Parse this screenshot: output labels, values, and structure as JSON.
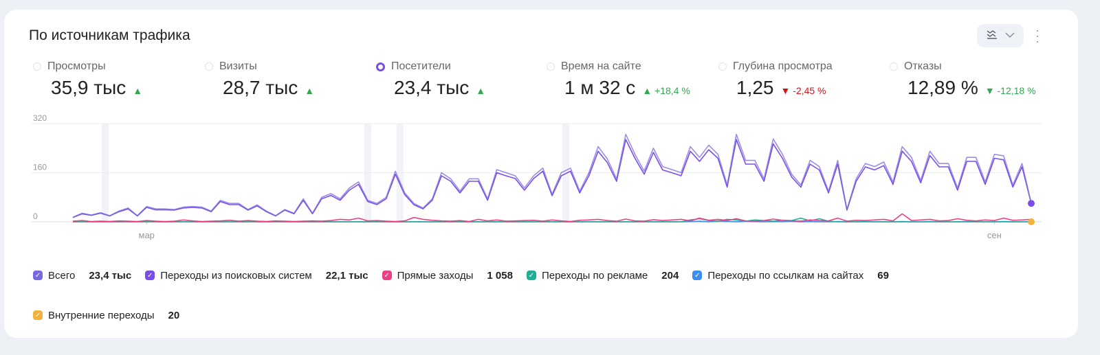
{
  "widget": {
    "title": "По источникам трафика",
    "more_icon": "kebab-icon",
    "chart_type_icon": "line-chart-icon"
  },
  "metrics": [
    {
      "label": "Просмотры",
      "value": "35,9 тыс",
      "trend": "up",
      "delta": "",
      "selected": false
    },
    {
      "label": "Визиты",
      "value": "28,7 тыс",
      "trend": "up",
      "delta": "",
      "selected": false
    },
    {
      "label": "Посетители",
      "value": "23,4 тыс",
      "trend": "up",
      "delta": "",
      "selected": true
    },
    {
      "label": "Время на сайте",
      "value": "1 м 32 с",
      "trend": "up",
      "delta": "+18,4 %",
      "selected": false
    },
    {
      "label": "Глубина просмотра",
      "value": "1,25",
      "trend": "down",
      "delta": "-2,45 %",
      "selected": false
    },
    {
      "label": "Отказы",
      "value": "12,89 %",
      "trend": "down-good",
      "delta": "-12,18 %",
      "selected": false
    }
  ],
  "colors": {
    "accent": "#7b4de8",
    "up": "#2fa84f",
    "down": "#d0141a"
  },
  "chart_data": {
    "type": "line",
    "ylim": [
      0,
      320
    ],
    "y_ticks": [
      "0",
      "160",
      "320"
    ],
    "x_ticks": [
      {
        "label": "мар",
        "index": 8
      },
      {
        "label": "сен",
        "index": 100
      }
    ],
    "highlight_indices": [
      3.5,
      32,
      35.5,
      53.5
    ],
    "grid": true,
    "legend_placement": "bottom",
    "series": [
      {
        "name": "Всего",
        "total": "23,4 тыс",
        "color": "#7768e0",
        "values": [
          15,
          28,
          22,
          30,
          20,
          35,
          45,
          20,
          50,
          42,
          42,
          40,
          48,
          50,
          48,
          35,
          70,
          60,
          60,
          40,
          55,
          35,
          20,
          40,
          28,
          75,
          28,
          80,
          92,
          75,
          110,
          130,
          70,
          60,
          80,
          165,
          95,
          60,
          45,
          75,
          160,
          140,
          100,
          140,
          140,
          75,
          170,
          160,
          150,
          110,
          150,
          175,
          90,
          160,
          175,
          100,
          160,
          245,
          205,
          140,
          285,
          220,
          165,
          240,
          180,
          170,
          160,
          245,
          210,
          250,
          220,
          120,
          285,
          200,
          200,
          140,
          270,
          220,
          155,
          120,
          200,
          180,
          100,
          200,
          40,
          140,
          190,
          180,
          195,
          130,
          245,
          210,
          135,
          230,
          190,
          190,
          110,
          210,
          210,
          130,
          220,
          215,
          120,
          190,
          60
        ]
      },
      {
        "name": "Переходы из поисковых систем",
        "total": "22,1 тыс",
        "color": "#7b4de8",
        "values": [
          14,
          26,
          21,
          28,
          19,
          33,
          42,
          19,
          47,
          39,
          39,
          38,
          45,
          47,
          45,
          33,
          66,
          56,
          56,
          38,
          52,
          33,
          19,
          38,
          26,
          70,
          26,
          75,
          86,
          70,
          103,
          122,
          66,
          56,
          75,
          155,
          89,
          56,
          42,
          70,
          150,
          132,
          94,
          132,
          132,
          70,
          160,
          150,
          141,
          103,
          141,
          165,
          85,
          150,
          165,
          94,
          150,
          230,
          193,
          132,
          268,
          207,
          155,
          226,
          169,
          160,
          150,
          230,
          197,
          235,
          207,
          113,
          268,
          188,
          188,
          132,
          254,
          207,
          146,
          113,
          188,
          169,
          94,
          188,
          38,
          132,
          179,
          169,
          183,
          122,
          230,
          197,
          127,
          216,
          179,
          179,
          103,
          197,
          197,
          122,
          207,
          202,
          113,
          179,
          60
        ]
      },
      {
        "name": "Прямые заходы",
        "total": "1 058",
        "color": "#ec3f86",
        "values": [
          2,
          4,
          1,
          2,
          1,
          3,
          2,
          1,
          4,
          2,
          1,
          2,
          6,
          3,
          1,
          2,
          3,
          5,
          2,
          4,
          2,
          1,
          3,
          2,
          1,
          2,
          3,
          2,
          4,
          8,
          6,
          12,
          3,
          4,
          2,
          1,
          3,
          14,
          8,
          5,
          3,
          2,
          4,
          1,
          8,
          3,
          6,
          2,
          3,
          4,
          5,
          2,
          6,
          3,
          1,
          5,
          6,
          8,
          4,
          2,
          9,
          3,
          2,
          7,
          4,
          6,
          8,
          3,
          12,
          5,
          8,
          4,
          10,
          3,
          2,
          4,
          9,
          5,
          3,
          2,
          6,
          4,
          3,
          12,
          2,
          5,
          4,
          6,
          8,
          3,
          26,
          4,
          6,
          8,
          3,
          4,
          10,
          5,
          3,
          6,
          4,
          12,
          5,
          6,
          8
        ]
      },
      {
        "name": "Переходы по рекламе",
        "total": "204",
        "color": "#1fae98",
        "values": [
          0,
          0,
          0,
          0,
          0,
          0,
          0,
          0,
          0,
          0,
          0,
          0,
          0,
          0,
          0,
          0,
          0,
          0,
          0,
          0,
          0,
          0,
          0,
          0,
          0,
          0,
          0,
          0,
          0,
          0,
          0,
          0,
          0,
          0,
          0,
          0,
          0,
          0,
          0,
          0,
          0,
          0,
          0,
          0,
          0,
          0,
          0,
          0,
          0,
          0,
          0,
          0,
          0,
          0,
          0,
          0,
          0,
          0,
          0,
          0,
          0,
          0,
          0,
          0,
          0,
          0,
          0,
          6,
          10,
          4,
          2,
          8,
          6,
          2,
          6,
          4,
          2,
          5,
          4,
          12,
          3,
          10,
          2,
          0,
          0,
          0,
          0,
          0,
          0,
          0,
          0,
          0,
          0,
          0,
          0,
          0,
          0,
          0,
          0,
          0,
          0,
          0,
          0,
          0,
          0
        ]
      },
      {
        "name": "Переходы по ссылкам на сайтах",
        "total": "69",
        "color": "#3b8ef0",
        "values": [
          0,
          0,
          0,
          0,
          0,
          0,
          0,
          0,
          0,
          0,
          0,
          0,
          0,
          0,
          0,
          0,
          0,
          0,
          0,
          0,
          0,
          0,
          0,
          0,
          0,
          0,
          0,
          0,
          0,
          0,
          0,
          0,
          0,
          0,
          0,
          0,
          0,
          0,
          0,
          0,
          0,
          0,
          0,
          0,
          0,
          0,
          0,
          0,
          0,
          0,
          0,
          0,
          0,
          0,
          0,
          0,
          0,
          0,
          0,
          0,
          0,
          0,
          0,
          0,
          0,
          0,
          0,
          1,
          2,
          0,
          3,
          1,
          0,
          2,
          1,
          0,
          1,
          0,
          2,
          0,
          1,
          0,
          0,
          1,
          0,
          0,
          1,
          0,
          0,
          0,
          1,
          0,
          0,
          1,
          0,
          0,
          0,
          1,
          0,
          0,
          0,
          1,
          0,
          0,
          0
        ]
      },
      {
        "name": "Внутренние переходы",
        "total": "20",
        "color": "#f3b23c",
        "values": [
          0,
          0,
          0,
          0,
          0,
          0,
          0,
          0,
          0,
          0,
          0,
          0,
          0,
          0,
          0,
          0,
          0,
          0,
          0,
          0,
          0,
          0,
          0,
          0,
          0,
          0,
          0,
          0,
          0,
          0,
          0,
          0,
          0,
          0,
          0,
          0,
          0,
          0,
          0,
          0,
          0,
          0,
          0,
          0,
          0,
          0,
          0,
          0,
          0,
          0,
          0,
          0,
          0,
          0,
          0,
          0,
          0,
          0,
          0,
          0,
          0,
          0,
          0,
          0,
          0,
          0,
          0,
          0,
          0,
          0,
          0,
          1,
          0,
          0,
          0,
          0,
          0,
          1,
          0,
          0,
          0,
          0,
          0,
          0,
          0,
          0,
          0,
          0,
          0,
          0,
          0,
          0,
          0,
          0,
          0,
          0,
          0,
          0,
          0,
          0,
          0,
          0,
          0,
          0,
          0
        ]
      }
    ]
  }
}
